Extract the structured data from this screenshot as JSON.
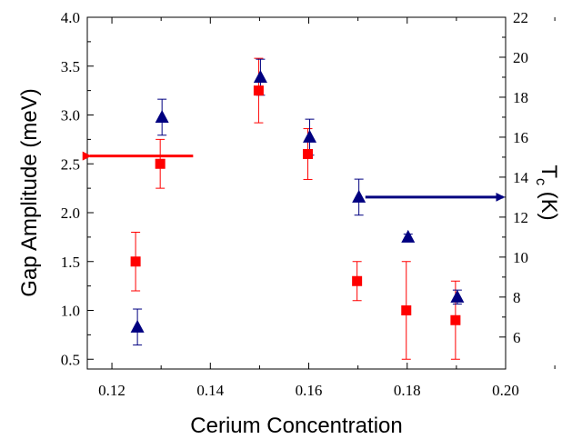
{
  "chart_data": {
    "type": "scatter",
    "xlabel": "Cerium Concentration",
    "ylabel_left": "Gap Amplitude (meV)",
    "ylabel_right_main": "T",
    "ylabel_right_sub": "c",
    "ylabel_right_unit": " (K)",
    "xlim": [
      0.115,
      0.2
    ],
    "ylim_left": [
      0.4,
      4.0
    ],
    "ylim_right": [
      4.4,
      22
    ],
    "x_ticks": [
      "0.12",
      "0.14",
      "0.16",
      "0.18",
      "0.20"
    ],
    "x_tick_values": [
      0.12,
      0.14,
      0.16,
      0.18,
      0.2
    ],
    "y_left_ticks": [
      "0.5",
      "1.0",
      "1.5",
      "2.0",
      "2.5",
      "3.0",
      "3.5",
      "4.0"
    ],
    "y_left_tick_values": [
      0.5,
      1.0,
      1.5,
      2.0,
      2.5,
      3.0,
      3.5,
      4.0
    ],
    "y_right_ticks": [
      "6",
      "8",
      "10",
      "12",
      "14",
      "16",
      "18",
      "20",
      "22"
    ],
    "y_right_tick_values": [
      6,
      8,
      10,
      12,
      14,
      16,
      18,
      20,
      22
    ],
    "series": [
      {
        "axis": "left",
        "marker": "square",
        "color": "#ff0000",
        "points": [
          {
            "x": 0.125,
            "y": 1.5,
            "err": 0.3
          },
          {
            "x": 0.13,
            "y": 2.5,
            "err": 0.25
          },
          {
            "x": 0.15,
            "y": 3.25,
            "err": 0.33
          },
          {
            "x": 0.16,
            "y": 2.6,
            "err": 0.26
          },
          {
            "x": 0.17,
            "y": 1.3,
            "err": 0.2
          },
          {
            "x": 0.18,
            "y": 1.0,
            "err": 0.5
          },
          {
            "x": 0.19,
            "y": 0.9,
            "err": 0.4
          }
        ]
      },
      {
        "axis": "right",
        "marker": "triangle",
        "color": "#000080",
        "points": [
          {
            "x": 0.125,
            "y": 6.5,
            "err": 0.9
          },
          {
            "x": 0.13,
            "y": 17.0,
            "err": 0.9
          },
          {
            "x": 0.15,
            "y": 19.0,
            "err": 0.9
          },
          {
            "x": 0.16,
            "y": 16.0,
            "err": 0.9
          },
          {
            "x": 0.17,
            "y": 13.0,
            "err": 0.9
          },
          {
            "x": 0.18,
            "y": 11.0,
            "err": 0.15
          },
          {
            "x": 0.19,
            "y": 8.0,
            "err": 0.35
          }
        ]
      }
    ],
    "annotations": [
      {
        "type": "arrow",
        "direction": "left",
        "color": "#ff0000",
        "x_from": 0.1365,
        "x_to": 0.1155,
        "y_left": 2.58
      },
      {
        "type": "arrow",
        "direction": "right",
        "color": "#000080",
        "x_from": 0.1715,
        "x_to": 0.1995,
        "y_right": 13.0
      }
    ]
  }
}
